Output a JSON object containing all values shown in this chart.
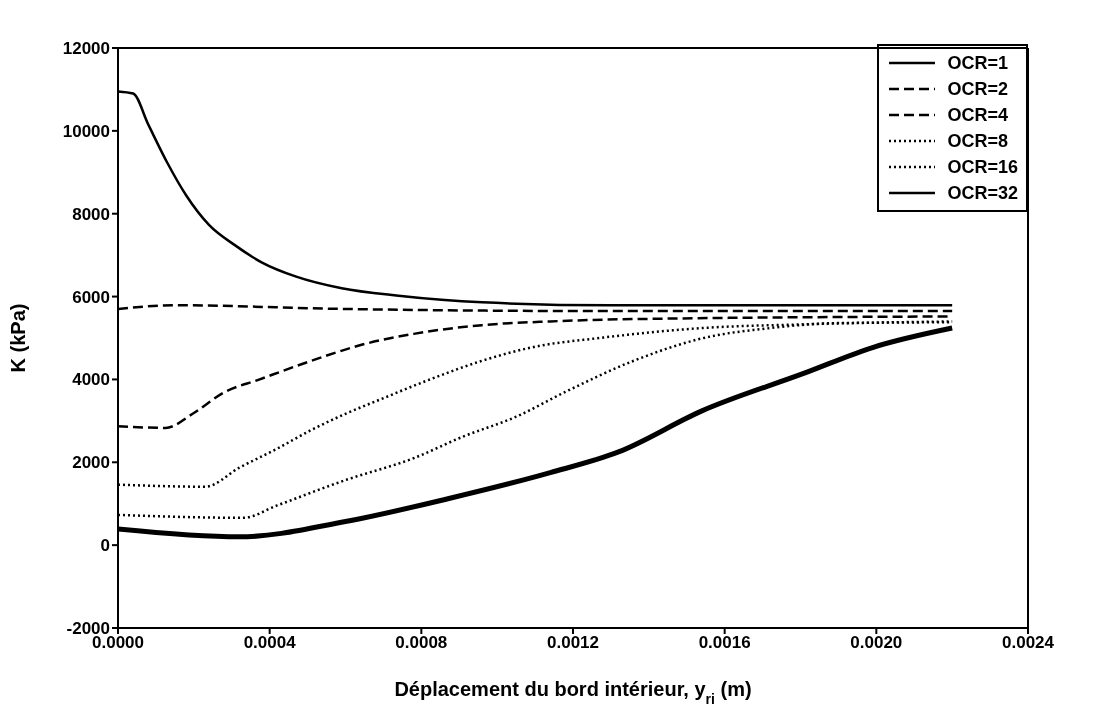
{
  "chart_data": {
    "type": "line",
    "xlabel": "Déplacement du bord intérieur, y$_{ri}$ (m)",
    "ylabel": "K (kPa)",
    "xlim": [
      0,
      0.0024
    ],
    "xticks": [
      {
        "value": 0,
        "label": "0.0000"
      },
      {
        "value": 0.0004,
        "label": "0.0004"
      },
      {
        "value": 0.0008,
        "label": "0.0008"
      },
      {
        "value": 0.0012,
        "label": "0.0012"
      },
      {
        "value": 0.0016,
        "label": "0.0016"
      },
      {
        "value": 0.002,
        "label": "0.0020"
      },
      {
        "value": 0.0024,
        "label": "0.0024"
      }
    ],
    "ylim": [
      -2000,
      12000
    ],
    "yticks": [
      -2000,
      0,
      2000,
      4000,
      6000,
      8000,
      10000,
      12000
    ],
    "legend": "top right",
    "marker": "none",
    "series": [
      {
        "name": "OCR=1",
        "color": "#000000",
        "line_style": "solid",
        "x": [
          0,
          4e-05,
          8e-05,
          0.00013,
          0.00018,
          0.00024,
          0.00031,
          0.00038,
          0.00047,
          0.00059,
          0.00074,
          0.00096,
          0.0013,
          0.0022
        ],
        "values": [
          10950,
          10900,
          10150,
          9230,
          8440,
          7730,
          7230,
          6820,
          6480,
          6200,
          6020,
          5860,
          5790,
          5790
        ]
      },
      {
        "name": "OCR=2",
        "color": "#000000",
        "line_style": "dashed",
        "x": [
          0,
          0.00015,
          0.0006,
          0.0013,
          0.0022
        ],
        "values": [
          5700,
          5790,
          5700,
          5650,
          5650
        ]
      },
      {
        "name": "OCR=4",
        "color": "#000000",
        "line_style": "dashed",
        "x": [
          0,
          0.000125,
          0.0002,
          0.00028,
          0.00037,
          0.00051,
          0.00064,
          0.00078,
          0.00096,
          0.00114,
          0.00132,
          0.0022
        ],
        "values": [
          2870,
          2830,
          3190,
          3690,
          3990,
          4450,
          4830,
          5100,
          5310,
          5400,
          5450,
          5520
        ]
      },
      {
        "name": "OCR=8",
        "color": "#000000",
        "line_style": "dotted",
        "x": [
          0,
          0.00023,
          0.00032,
          0.00042,
          0.00051,
          0.0006,
          0.00069,
          0.00082,
          0.00096,
          0.0011,
          0.00127,
          0.00154,
          0.00181,
          0.0022
        ],
        "values": [
          1460,
          1410,
          1870,
          2330,
          2780,
          3170,
          3510,
          3990,
          4450,
          4790,
          5000,
          5240,
          5330,
          5400
        ]
      },
      {
        "name": "OCR=16",
        "color": "#000000",
        "line_style": "dotted",
        "x": [
          0,
          0.00033,
          0.00042,
          0.0006,
          0.00078,
          0.00091,
          0.00105,
          0.00118,
          0.00136,
          0.00154,
          0.00172,
          0.0019,
          0.0022
        ],
        "values": [
          730,
          660,
          960,
          1570,
          2100,
          2620,
          3100,
          3700,
          4450,
          4990,
          5240,
          5360,
          5380
        ]
      },
      {
        "name": "OCR=32",
        "color": "#000000",
        "line_style": "solid",
        "x": [
          0,
          0.00032,
          0.0006,
          0.00087,
          0.00114,
          0.00132,
          0.00154,
          0.00181,
          0.00199,
          0.0022
        ],
        "values": [
          390,
          200,
          570,
          1120,
          1750,
          2250,
          3240,
          4150,
          4770,
          5240
        ]
      }
    ]
  }
}
